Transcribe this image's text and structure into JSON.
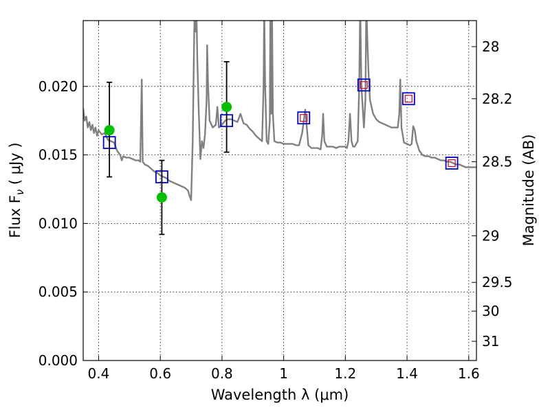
{
  "chart_data": {
    "type": "scatter",
    "xlabel": "Wavelength  λ (μm)",
    "ylabel": "Flux  F",
    "ylabel_sub": "ν",
    "ylabel_unit": "  ( μJy )",
    "y2label": "Magnitude (AB)",
    "xlim": [
      0.35,
      1.625
    ],
    "ylim": [
      0.0,
      0.0248
    ],
    "x_ticks": [
      0.4,
      0.6,
      0.8,
      1.0,
      1.2,
      1.4,
      1.6
    ],
    "x_tick_labels": [
      "0.4",
      "0.6",
      "0.8",
      "1",
      "1.2",
      "1.4",
      "1.6"
    ],
    "y_ticks": [
      0.0,
      0.005,
      0.01,
      0.015,
      0.02
    ],
    "y_tick_labels": [
      "0.000",
      "0.005",
      "0.010",
      "0.015",
      "0.020"
    ],
    "y2_ticks": [
      {
        "label": "28",
        "flux": 0.0229
      },
      {
        "label": "28.2",
        "flux": 0.0191
      },
      {
        "label": "28.5",
        "flux": 0.0145
      },
      {
        "label": "29",
        "flux": 0.0091
      },
      {
        "label": "29.5",
        "flux": 0.0057
      },
      {
        "label": "30",
        "flux": 0.0036
      },
      {
        "label": "31",
        "flux": 0.0014
      }
    ],
    "grid": true,
    "colors": {
      "model": "#808080",
      "photometry": "#00c000",
      "model_box": "#0000cc",
      "inner_box": "#cc0033",
      "errorbar": "#000000"
    },
    "series": [
      {
        "kind": "line",
        "points": [
          [
            0.35,
            0.0184
          ],
          [
            0.355,
            0.0175
          ],
          [
            0.36,
            0.0178
          ],
          [
            0.365,
            0.017
          ],
          [
            0.37,
            0.0174
          ],
          [
            0.375,
            0.0168
          ],
          [
            0.38,
            0.0172
          ],
          [
            0.385,
            0.0166
          ],
          [
            0.39,
            0.017
          ],
          [
            0.395,
            0.0164
          ],
          [
            0.4,
            0.0168
          ],
          [
            0.41,
            0.0165
          ],
          [
            0.42,
            0.0166
          ],
          [
            0.43,
            0.0161
          ],
          [
            0.44,
            0.016
          ],
          [
            0.45,
            0.0159
          ],
          [
            0.46,
            0.0153
          ],
          [
            0.47,
            0.015
          ],
          [
            0.475,
            0.0146
          ],
          [
            0.48,
            0.0149
          ],
          [
            0.49,
            0.0148
          ],
          [
            0.5,
            0.0148
          ],
          [
            0.51,
            0.0147
          ],
          [
            0.52,
            0.0146
          ],
          [
            0.53,
            0.0146
          ],
          [
            0.535,
            0.0145
          ],
          [
            0.538,
            0.018
          ],
          [
            0.54,
            0.0205
          ],
          [
            0.543,
            0.0145
          ],
          [
            0.55,
            0.0143
          ],
          [
            0.56,
            0.0142
          ],
          [
            0.57,
            0.014
          ],
          [
            0.58,
            0.0138
          ],
          [
            0.59,
            0.0137
          ],
          [
            0.6,
            0.0135
          ],
          [
            0.61,
            0.0134
          ],
          [
            0.62,
            0.0133
          ],
          [
            0.63,
            0.0131
          ],
          [
            0.64,
            0.013
          ],
          [
            0.65,
            0.0129
          ],
          [
            0.66,
            0.0128
          ],
          [
            0.67,
            0.0127
          ],
          [
            0.68,
            0.0126
          ],
          [
            0.69,
            0.0124
          ],
          [
            0.695,
            0.012
          ],
          [
            0.7,
            0.0117
          ],
          [
            0.705,
            0.016
          ],
          [
            0.71,
            0.024
          ],
          [
            0.712,
            0.026
          ],
          [
            0.715,
            0.024
          ],
          [
            0.717,
            0.026
          ],
          [
            0.72,
            0.022
          ],
          [
            0.725,
            0.018
          ],
          [
            0.73,
            0.0147
          ],
          [
            0.735,
            0.016
          ],
          [
            0.74,
            0.0155
          ],
          [
            0.745,
            0.0165
          ],
          [
            0.75,
            0.019
          ],
          [
            0.752,
            0.023
          ],
          [
            0.755,
            0.02
          ],
          [
            0.76,
            0.0175
          ],
          [
            0.77,
            0.017
          ],
          [
            0.78,
            0.0172
          ],
          [
            0.785,
            0.0185
          ],
          [
            0.79,
            0.017
          ],
          [
            0.8,
            0.0172
          ],
          [
            0.81,
            0.0175
          ],
          [
            0.82,
            0.0176
          ],
          [
            0.83,
            0.0176
          ],
          [
            0.84,
            0.0175
          ],
          [
            0.85,
            0.0174
          ],
          [
            0.86,
            0.018
          ],
          [
            0.87,
            0.0173
          ],
          [
            0.88,
            0.0172
          ],
          [
            0.89,
            0.0169
          ],
          [
            0.9,
            0.0167
          ],
          [
            0.91,
            0.0164
          ],
          [
            0.92,
            0.0162
          ],
          [
            0.93,
            0.016
          ],
          [
            0.935,
            0.02
          ],
          [
            0.937,
            0.026
          ],
          [
            0.94,
            0.02
          ],
          [
            0.945,
            0.016
          ],
          [
            0.95,
            0.0158
          ],
          [
            0.955,
            0.0175
          ],
          [
            0.957,
            0.026
          ],
          [
            0.96,
            0.018
          ],
          [
            0.962,
            0.026
          ],
          [
            0.965,
            0.018
          ],
          [
            0.97,
            0.016
          ],
          [
            0.98,
            0.0159
          ],
          [
            0.99,
            0.0159
          ],
          [
            1.0,
            0.0158
          ],
          [
            1.01,
            0.0158
          ],
          [
            1.02,
            0.0158
          ],
          [
            1.03,
            0.0158
          ],
          [
            1.04,
            0.0157
          ],
          [
            1.05,
            0.0157
          ],
          [
            1.06,
            0.0166
          ],
          [
            1.07,
            0.0183
          ],
          [
            1.075,
            0.017
          ],
          [
            1.08,
            0.0157
          ],
          [
            1.09,
            0.0155
          ],
          [
            1.1,
            0.0155
          ],
          [
            1.11,
            0.0155
          ],
          [
            1.12,
            0.0154
          ],
          [
            1.125,
            0.0165
          ],
          [
            1.128,
            0.018
          ],
          [
            1.132,
            0.016
          ],
          [
            1.14,
            0.0156
          ],
          [
            1.15,
            0.0156
          ],
          [
            1.16,
            0.0156
          ],
          [
            1.17,
            0.0155
          ],
          [
            1.18,
            0.0156
          ],
          [
            1.19,
            0.0156
          ],
          [
            1.2,
            0.0156
          ],
          [
            1.205,
            0.0155
          ],
          [
            1.21,
            0.016
          ],
          [
            1.215,
            0.018
          ],
          [
            1.22,
            0.016
          ],
          [
            1.225,
            0.0156
          ],
          [
            1.23,
            0.0156
          ],
          [
            1.24,
            0.016
          ],
          [
            1.245,
            0.02
          ],
          [
            1.248,
            0.026
          ],
          [
            1.252,
            0.02
          ],
          [
            1.26,
            0.017
          ],
          [
            1.265,
            0.019
          ],
          [
            1.268,
            0.026
          ],
          [
            1.272,
            0.023
          ],
          [
            1.275,
            0.021
          ],
          [
            1.28,
            0.019
          ],
          [
            1.285,
            0.0185
          ],
          [
            1.29,
            0.018
          ],
          [
            1.295,
            0.0178
          ],
          [
            1.3,
            0.0176
          ],
          [
            1.31,
            0.0174
          ],
          [
            1.32,
            0.0173
          ],
          [
            1.33,
            0.0172
          ],
          [
            1.34,
            0.0171
          ],
          [
            1.35,
            0.017
          ],
          [
            1.36,
            0.017
          ],
          [
            1.37,
            0.017
          ],
          [
            1.375,
            0.018
          ],
          [
            1.378,
            0.0205
          ],
          [
            1.382,
            0.017
          ],
          [
            1.39,
            0.0159
          ],
          [
            1.4,
            0.0158
          ],
          [
            1.41,
            0.0157
          ],
          [
            1.415,
            0.0158
          ],
          [
            1.42,
            0.0171
          ],
          [
            1.425,
            0.0168
          ],
          [
            1.43,
            0.016
          ],
          [
            1.44,
            0.0153
          ],
          [
            1.45,
            0.015
          ],
          [
            1.46,
            0.0149
          ],
          [
            1.47,
            0.0149
          ],
          [
            1.48,
            0.0148
          ],
          [
            1.49,
            0.0148
          ],
          [
            1.5,
            0.0147
          ],
          [
            1.51,
            0.0146
          ],
          [
            1.52,
            0.0146
          ],
          [
            1.53,
            0.0145
          ],
          [
            1.54,
            0.0145
          ],
          [
            1.55,
            0.0144
          ],
          [
            1.56,
            0.0143
          ],
          [
            1.57,
            0.0143
          ],
          [
            1.58,
            0.0142
          ],
          [
            1.59,
            0.0141
          ],
          [
            1.6,
            0.0141
          ],
          [
            1.61,
            0.0141
          ],
          [
            1.625,
            0.0141
          ]
        ]
      },
      {
        "kind": "errorbar-points",
        "points": [
          {
            "x": 0.435,
            "y": 0.0168,
            "err_low": 0.0134,
            "err_high": 0.0203
          },
          {
            "x": 0.605,
            "y": 0.0119,
            "err_low": 0.0092,
            "err_high": 0.0146
          },
          {
            "x": 0.815,
            "y": 0.0185,
            "err_low": 0.0152,
            "err_high": 0.0218
          }
        ]
      },
      {
        "kind": "model-boxes",
        "points": [
          {
            "x": 0.435,
            "y": 0.0159,
            "inner": false
          },
          {
            "x": 0.605,
            "y": 0.0134,
            "inner": false
          },
          {
            "x": 0.815,
            "y": 0.0175,
            "inner": false
          },
          {
            "x": 1.065,
            "y": 0.0177,
            "inner": true
          },
          {
            "x": 1.26,
            "y": 0.0201,
            "inner": true
          },
          {
            "x": 1.405,
            "y": 0.0191,
            "inner": true
          },
          {
            "x": 1.545,
            "y": 0.0144,
            "inner": true
          }
        ]
      }
    ]
  }
}
